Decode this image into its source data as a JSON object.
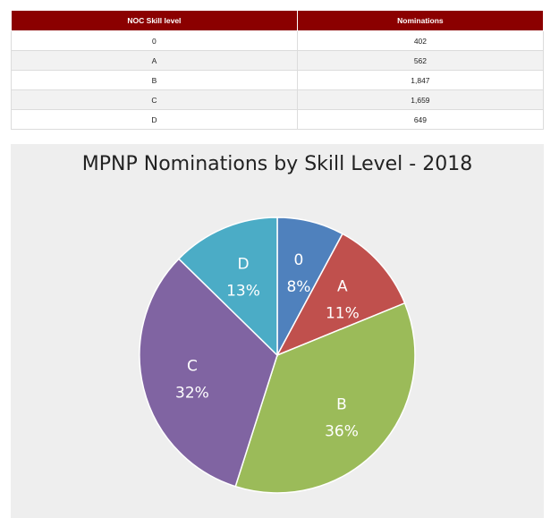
{
  "table": {
    "headers": [
      "NOC Skill level",
      "Nominations"
    ],
    "rows": [
      [
        "0",
        "402"
      ],
      [
        "A",
        "562"
      ],
      [
        "B",
        "1,847"
      ],
      [
        "C",
        "1,659"
      ],
      [
        "D",
        "649"
      ]
    ]
  },
  "chart_data": {
    "type": "pie",
    "title": "MPNP Nominations by Skill Level - 2018",
    "categories": [
      "0",
      "A",
      "B",
      "C",
      "D"
    ],
    "values": [
      402,
      562,
      1847,
      1659,
      649
    ],
    "percent_labels": [
      "8%",
      "11%",
      "36%",
      "32%",
      "13%"
    ],
    "colors": [
      "#4f81bd",
      "#c0504d",
      "#9bbb59",
      "#8064a2",
      "#4bacc6"
    ],
    "start_angle_deg": 0,
    "direction": "clockwise",
    "legend": "none"
  }
}
